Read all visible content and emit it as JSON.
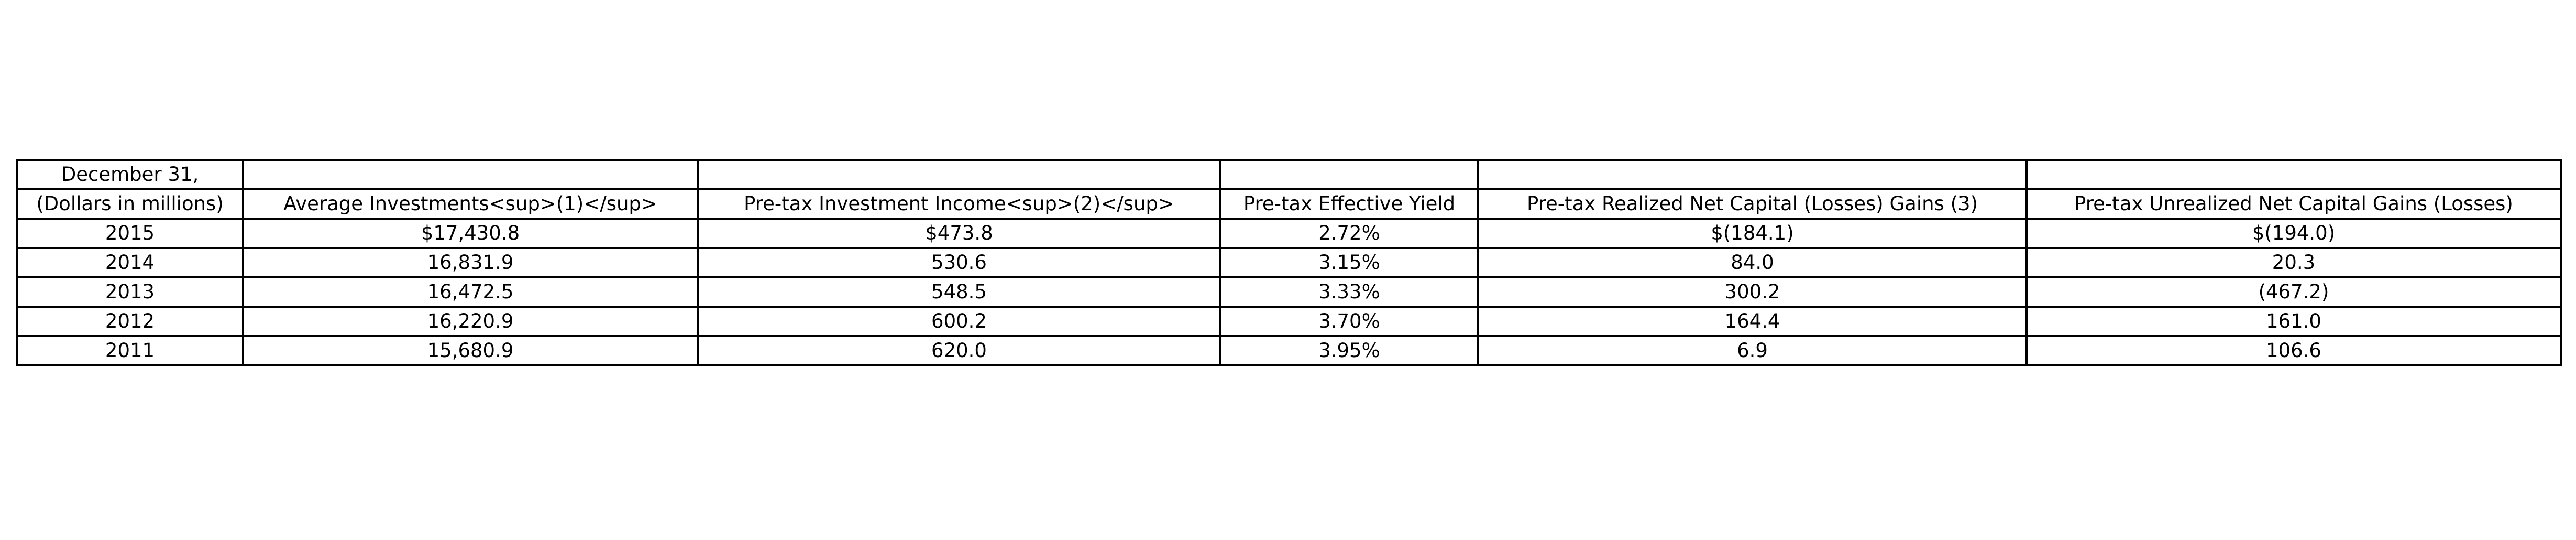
{
  "table": {
    "header_row_1": [
      "December 31,",
      "",
      "",
      "",
      "",
      ""
    ],
    "header_row_2": [
      "(Dollars in millions)",
      "Average Investments<sup>(1)</sup>",
      "Pre-tax Investment Income<sup>(2)</sup>",
      "Pre-tax Effective Yield",
      "Pre-tax Realized Net Capital (Losses) Gains (3)",
      "Pre-tax Unrealized Net Capital Gains (Losses)"
    ],
    "rows": [
      [
        "2015",
        "$17,430.8",
        "$473.8",
        "2.72%",
        "$(184.1)",
        "$(194.0)"
      ],
      [
        "2014",
        "16,831.9",
        "530.6",
        "3.15%",
        "84.0",
        "20.3"
      ],
      [
        "2013",
        "16,472.5",
        "548.5",
        "3.33%",
        "300.2",
        "(467.2)"
      ],
      [
        "2012",
        "16,220.9",
        "600.2",
        "3.70%",
        "164.4",
        "161.0"
      ],
      [
        "2011",
        "15,680.9",
        "620.0",
        "3.95%",
        "6.9",
        "106.6"
      ]
    ]
  }
}
